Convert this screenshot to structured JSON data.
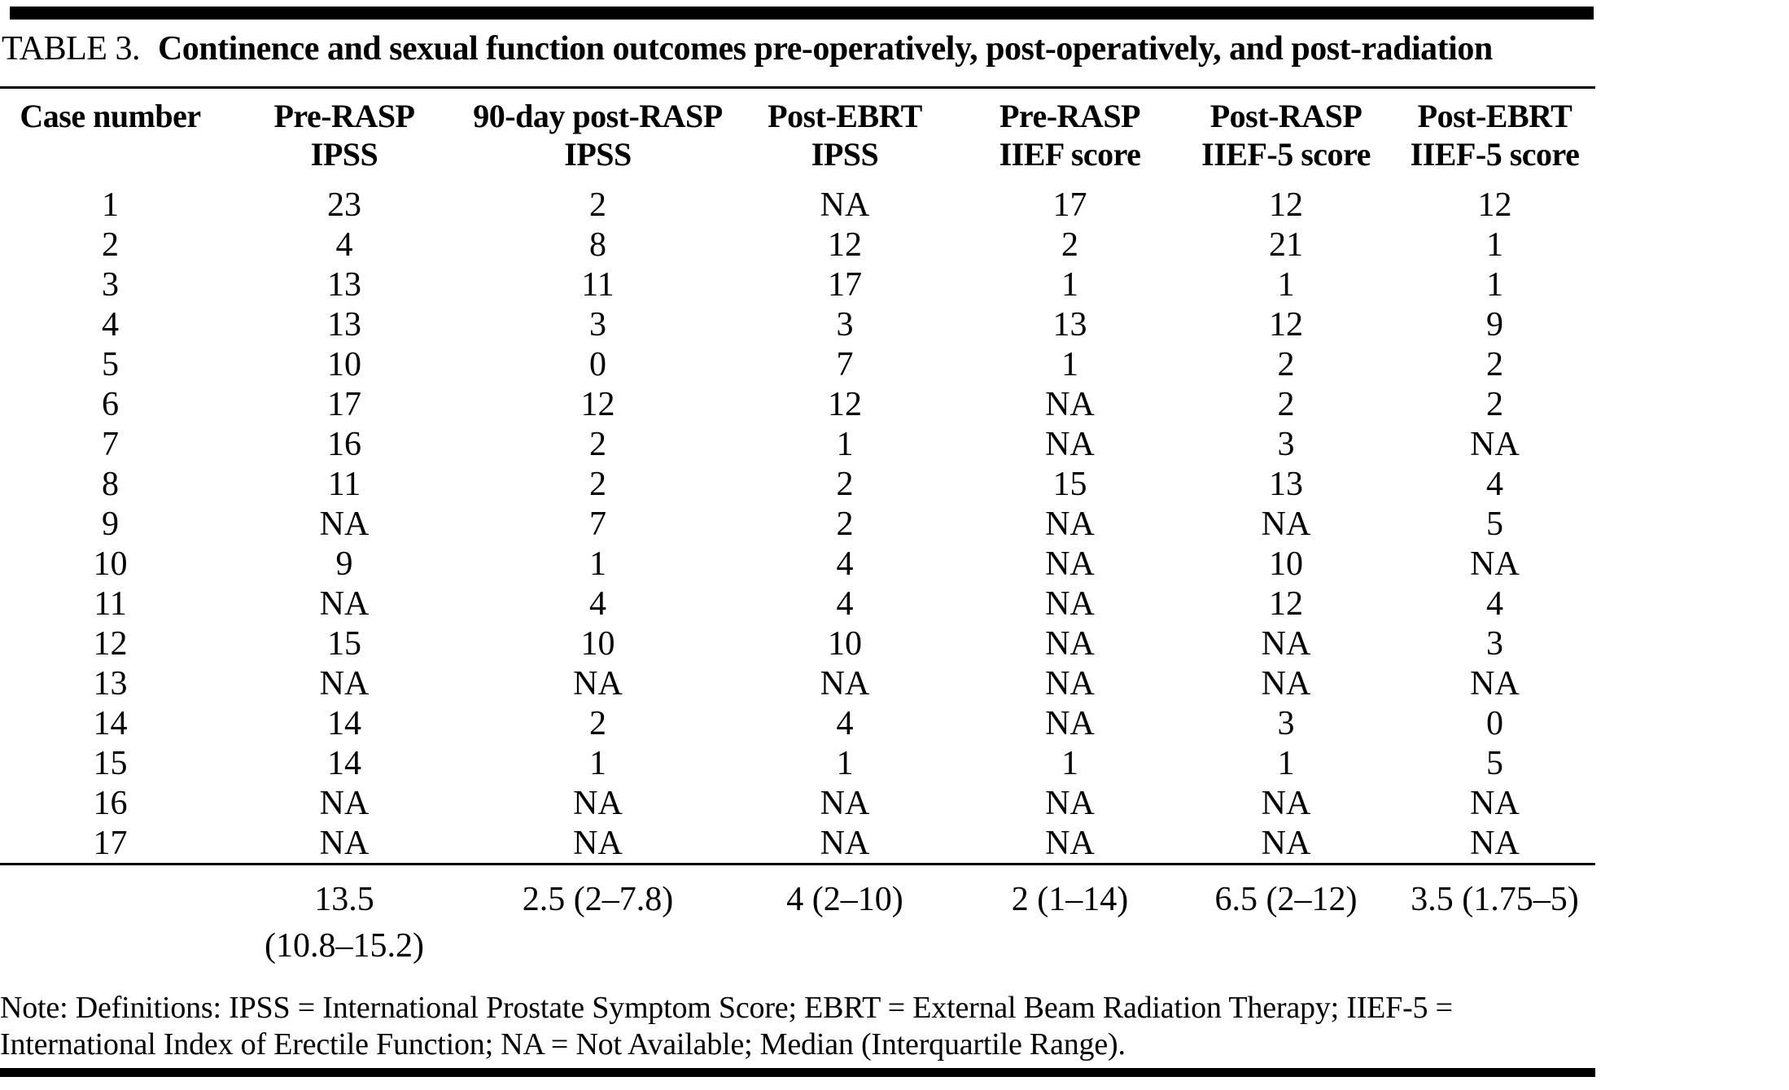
{
  "table": {
    "title_prefix": "TABLE 3.",
    "title": "Continence and sexual function outcomes pre-operatively, post-operatively, and post-radiation",
    "columns": [
      {
        "line1": "Case number",
        "line2": ""
      },
      {
        "line1": "Pre-RASP",
        "line2": "IPSS"
      },
      {
        "line1": "90-day post-RASP",
        "line2": "IPSS"
      },
      {
        "line1": "Post-EBRT",
        "line2": "IPSS"
      },
      {
        "line1": "Pre-RASP",
        "line2": "IIEF score"
      },
      {
        "line1": "Post-RASP",
        "line2": "IIEF-5 score"
      },
      {
        "line1": "Post-EBRT",
        "line2": "IIEF-5 score"
      }
    ],
    "rows": [
      [
        "1",
        "23",
        "2",
        "NA",
        "17",
        "12",
        "12"
      ],
      [
        "2",
        "4",
        "8",
        "12",
        "2",
        "21",
        "1"
      ],
      [
        "3",
        "13",
        "11",
        "17",
        "1",
        "1",
        "1"
      ],
      [
        "4",
        "13",
        "3",
        "3",
        "13",
        "12",
        "9"
      ],
      [
        "5",
        "10",
        "0",
        "7",
        "1",
        "2",
        "2"
      ],
      [
        "6",
        "17",
        "12",
        "12",
        "NA",
        "2",
        "2"
      ],
      [
        "7",
        "16",
        "2",
        "1",
        "NA",
        "3",
        "NA"
      ],
      [
        "8",
        "11",
        "2",
        "2",
        "15",
        "13",
        "4"
      ],
      [
        "9",
        "NA",
        "7",
        "2",
        "NA",
        "NA",
        "5"
      ],
      [
        "10",
        "9",
        "1",
        "4",
        "NA",
        "10",
        "NA"
      ],
      [
        "11",
        "NA",
        "4",
        "4",
        "NA",
        "12",
        "4"
      ],
      [
        "12",
        "15",
        "10",
        "10",
        "NA",
        "NA",
        "3"
      ],
      [
        "13",
        "NA",
        "NA",
        "NA",
        "NA",
        "NA",
        "NA"
      ],
      [
        "14",
        "14",
        "2",
        "4",
        "NA",
        "3",
        "0"
      ],
      [
        "15",
        "14",
        "1",
        "1",
        "1",
        "1",
        "5"
      ],
      [
        "16",
        "NA",
        "NA",
        "NA",
        "NA",
        "NA",
        "NA"
      ],
      [
        "17",
        "NA",
        "NA",
        "NA",
        "NA",
        "NA",
        "NA"
      ]
    ],
    "summary": [
      "",
      "13.5\n(10.8–15.2)",
      "2.5 (2–7.8)",
      "4 (2–10)",
      "2 (1–14)",
      "6.5 (2–12)",
      "3.5 (1.75–5)"
    ],
    "note_line1": "Note: Definitions: IPSS = International Prostate Symptom Score; EBRT = External Beam Radiation Therapy; IIEF-5 =",
    "note_line2": "International Index of Erectile Function; NA = Not Available; Median (Interquartile Range)."
  }
}
